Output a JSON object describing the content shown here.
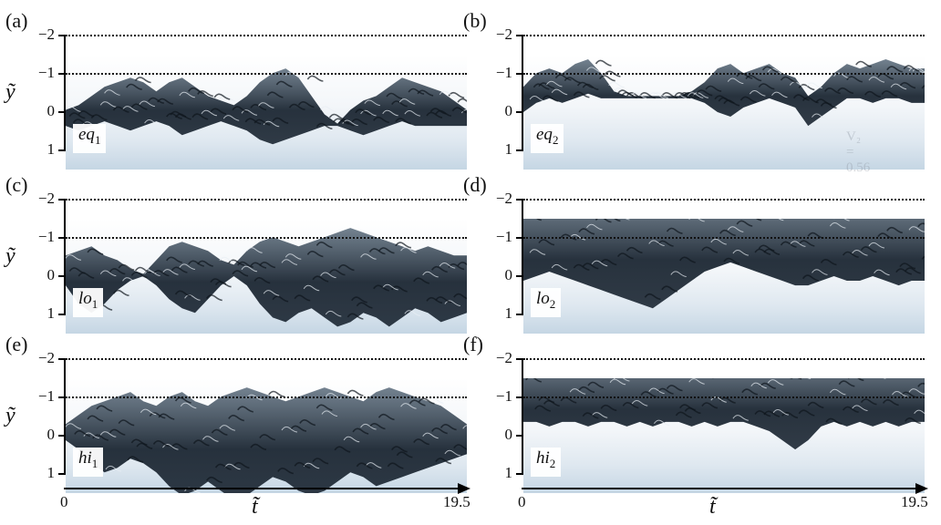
{
  "panels": [
    {
      "label": "(a)",
      "letter": "a",
      "tag_base": "eq",
      "tag_sub": "1",
      "show_ylabel": true,
      "watermark": ""
    },
    {
      "label": "(b)",
      "letter": "b",
      "tag_base": "eq",
      "tag_sub": "2",
      "show_ylabel": false,
      "watermark": "V₂ = 0.56"
    },
    {
      "label": "(c)",
      "letter": "c",
      "tag_base": "lo",
      "tag_sub": "1",
      "show_ylabel": true,
      "watermark": ""
    },
    {
      "label": "(d)",
      "letter": "d",
      "tag_base": "lo",
      "tag_sub": "2",
      "show_ylabel": false,
      "watermark": ""
    },
    {
      "label": "(e)",
      "letter": "e",
      "tag_base": "hi",
      "tag_sub": "1",
      "show_ylabel": true,
      "watermark": ""
    },
    {
      "label": "(f)",
      "letter": "f",
      "tag_base": "hi",
      "tag_sub": "2",
      "show_ylabel": false,
      "watermark": ""
    }
  ],
  "y_axis": {
    "title": "ỹ",
    "tick_labels": [
      "−2",
      "−1",
      "0",
      "1"
    ],
    "ticks": [
      -2,
      -1,
      0,
      1
    ]
  },
  "t_axis": {
    "title": "t̃",
    "start_label": "0",
    "end_label": "19.5",
    "range": [
      0,
      19.5
    ]
  },
  "colors": {
    "turbulence_dark": "#1c2733",
    "turbulence_mid": "#5b6c7c",
    "background_light": "#dfe8f0"
  }
}
